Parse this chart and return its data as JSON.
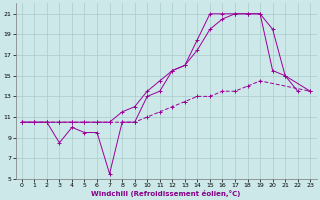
{
  "xlabel": "Windchill (Refroidissement éolien,°C)",
  "bg_color": "#cce8e8",
  "grid_color": "#aacccc",
  "line_color": "#990099",
  "xlim": [
    -0.5,
    23.5
  ],
  "ylim": [
    5,
    22
  ],
  "xticks": [
    0,
    1,
    2,
    3,
    4,
    5,
    6,
    7,
    8,
    9,
    10,
    11,
    12,
    13,
    14,
    15,
    16,
    17,
    18,
    19,
    20,
    21,
    22,
    23
  ],
  "yticks": [
    5,
    7,
    9,
    11,
    13,
    15,
    17,
    19,
    21
  ],
  "line1_x": [
    0,
    1,
    2,
    3,
    4,
    5,
    6,
    7,
    8,
    9,
    10,
    11,
    12,
    13,
    14,
    15,
    16,
    17,
    18,
    19,
    20,
    21,
    22
  ],
  "line1_y": [
    10.5,
    10.5,
    10.5,
    8.5,
    10.0,
    9.5,
    9.5,
    5.5,
    10.5,
    10.5,
    13,
    13.5,
    15.5,
    16,
    18.5,
    21,
    21,
    21,
    21,
    21,
    19.5,
    15,
    13.5
  ],
  "line2_x": [
    0,
    1,
    2,
    3,
    4,
    5,
    6,
    7,
    8,
    9,
    10,
    11,
    12,
    13,
    14,
    15,
    16,
    17,
    18,
    19,
    20,
    21,
    22,
    23
  ],
  "line2_y": [
    10.5,
    10.5,
    10.5,
    10.5,
    10.5,
    10.5,
    10.5,
    10.5,
    11.5,
    12,
    13.5,
    14.5,
    15.5,
    16,
    17.5,
    19.5,
    20.5,
    21,
    21,
    21,
    15.5,
    15,
    null,
    13.5
  ],
  "line3_x": [
    0,
    1,
    2,
    3,
    4,
    5,
    6,
    7,
    8,
    9,
    10,
    11,
    12,
    13,
    14,
    15,
    16,
    17,
    18,
    19,
    20,
    21,
    22,
    23
  ],
  "line3_y": [
    10.5,
    10.5,
    10.5,
    10.5,
    10.5,
    10.5,
    10.5,
    10.5,
    10.5,
    10.5,
    11,
    11.5,
    12,
    12.5,
    13,
    13,
    13.5,
    13.5,
    14,
    14.5,
    null,
    null,
    null,
    13.5
  ],
  "figsize": [
    3.2,
    2.0
  ],
  "dpi": 100
}
